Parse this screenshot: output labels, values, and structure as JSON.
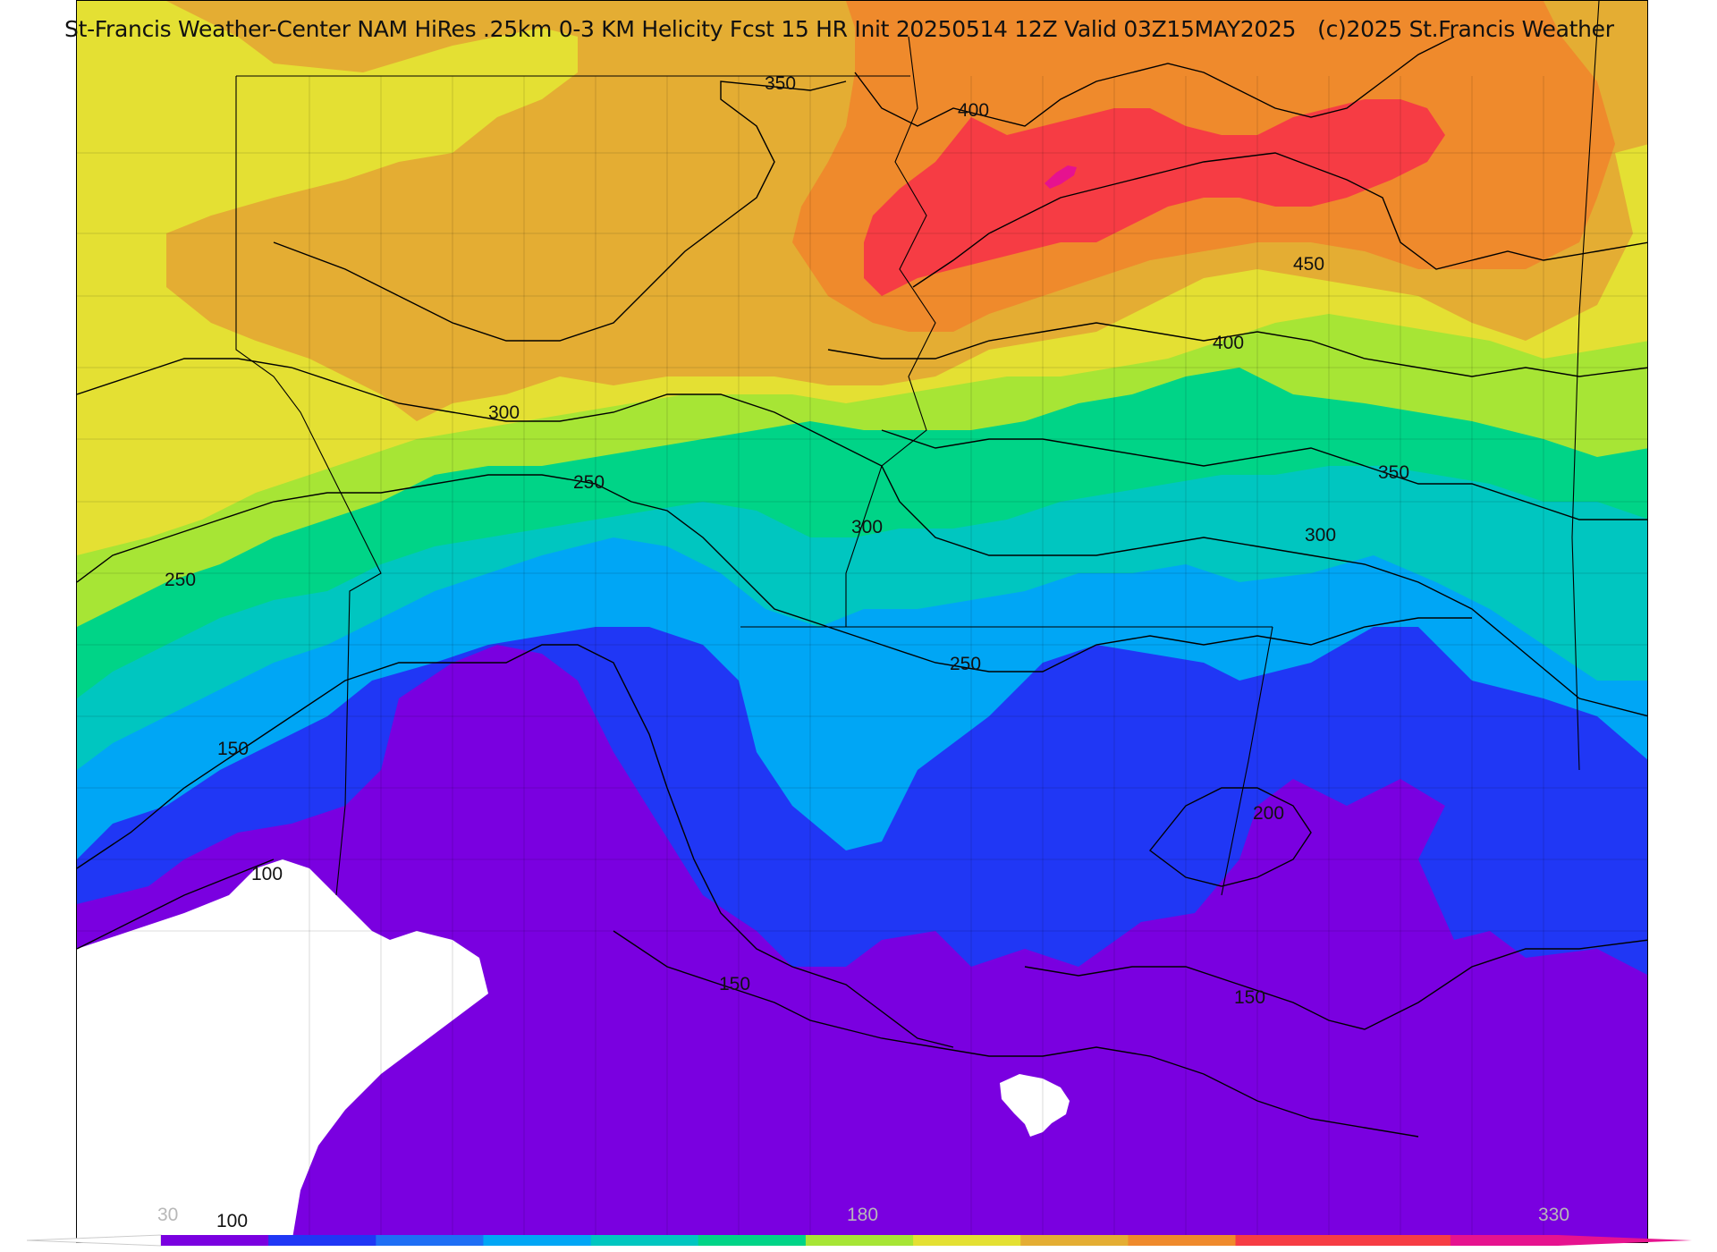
{
  "header": {
    "title_main": "St-Francis Weather-Center NAM HiRes .25km 0-3 KM Helicity Fcst 15 HR Init 20250514 12Z  Valid 03Z15MAY2025",
    "copyright": "(c)2025 St.Francis Weather"
  },
  "palette": {
    "white": "#ffffff",
    "violet": "#7a00e0",
    "blue": "#2037f5",
    "lightblue": "#00a6f5",
    "teal": "#00c6c0",
    "green": "#00d487",
    "lime": "#a7e535",
    "yellow": "#e4e033",
    "amber": "#e4ad33",
    "orange": "#ef8a2c",
    "red": "#f63c44",
    "magenta": "#e6128f"
  },
  "contour_labels": [
    {
      "value": "350"
    },
    {
      "value": "400"
    },
    {
      "value": "450"
    },
    {
      "value": "400"
    },
    {
      "value": "300"
    },
    {
      "value": "250"
    },
    {
      "value": "300"
    },
    {
      "value": "350"
    },
    {
      "value": "300"
    },
    {
      "value": "250"
    },
    {
      "value": "250"
    },
    {
      "value": "150"
    },
    {
      "value": "200"
    },
    {
      "value": "100"
    },
    {
      "value": "150"
    },
    {
      "value": "150"
    },
    {
      "value": "100"
    }
  ],
  "colorbar": {
    "ticks": [
      "30",
      "180",
      "330"
    ],
    "colors": [
      "#7a00e0",
      "#2037f5",
      "#1e6ef5",
      "#00a6f5",
      "#00c6c0",
      "#00d487",
      "#a7e535",
      "#e4e033",
      "#e4ad33",
      "#ef8a2c",
      "#f63c44",
      "#f63c44",
      "#e6128f"
    ]
  }
}
